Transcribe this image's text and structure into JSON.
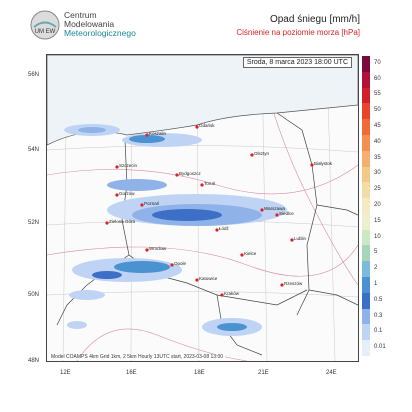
{
  "header": {
    "org_line1": "Centrum",
    "org_line2": "Modelowania",
    "org_line3": "Meteorologicznego",
    "logo_text": "UM EW",
    "title": "Opad śniegu [mm/h]",
    "subtitle": "Ciśnienie na poziomie morza [hPa]"
  },
  "map": {
    "datetime": "Środa, 8 marca 2023 18:00 UTC",
    "footnote": "Model COAMPS 4km Grid 1km, 2 5km Hourly 13UTC start, 2023-03-08 13:00",
    "lat_labels": [
      "56N",
      "54N",
      "52N",
      "50N",
      "48N"
    ],
    "lon_labels": [
      "12E",
      "16E",
      "18E",
      "21E",
      "24E"
    ],
    "cities": [
      "Gdańsk",
      "Olsztyn",
      "Białystok",
      "Bydgoszcz",
      "Szczecin",
      "Zielona Góra",
      "Poznań",
      "Toruń",
      "Warszawa",
      "Łódź",
      "Wrocław",
      "Opole",
      "Katowice",
      "Kraków",
      "Rzeszów",
      "Lublin",
      "Kielce",
      "Siedlce",
      "Koszalin",
      "Gorzów"
    ]
  },
  "legend": {
    "labels": [
      "70",
      "60",
      "55",
      "50",
      "45",
      "40",
      "35",
      "30",
      "25",
      "20",
      "15",
      "10",
      "5",
      "2",
      "1",
      "0.5",
      "0.3",
      "0.1",
      "0.01"
    ],
    "colors": [
      "#7a0a3a",
      "#b0103a",
      "#d2202a",
      "#e8452a",
      "#f06a3a",
      "#f39050",
      "#f4b070",
      "#f3c98a",
      "#f4dca8",
      "#f6eac4",
      "#eaf1cc",
      "#cde8c4",
      "#a5d6b8",
      "#7bbad8",
      "#4a92d0",
      "#3d6fc6",
      "#8fb2e8",
      "#bfd4f4",
      "#e6eefb"
    ]
  }
}
